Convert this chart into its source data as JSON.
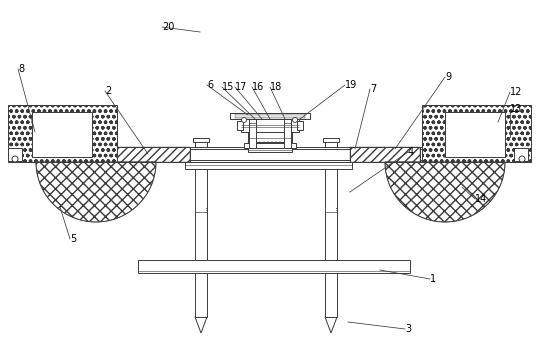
{
  "bg_color": "#ffffff",
  "line_color": "#3a3a3a",
  "lw": 0.7,
  "font_size": 7.0
}
